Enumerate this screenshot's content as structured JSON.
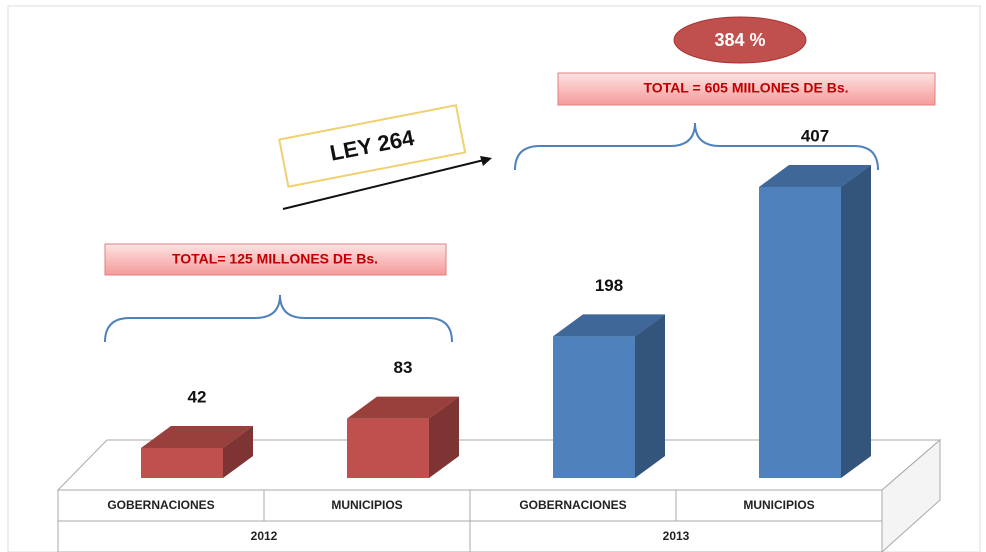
{
  "chart_data": {
    "type": "bar",
    "categories": [
      "GOBERNACIONES",
      "MUNICIPIOS",
      "GOBERNACIONES",
      "MUNICIPIOS"
    ],
    "groups": [
      "2012",
      "2013"
    ],
    "values": [
      42,
      83,
      198,
      407
    ],
    "colors": [
      "#c0504d",
      "#c0504d",
      "#4f81bd",
      "#4f81bd"
    ],
    "annotations": [
      "TOTAL= 125 MILLONES DE Bs.",
      "TOTAL = 605 MIILONES DE Bs.",
      "LEY 264",
      "384 %"
    ]
  }
}
